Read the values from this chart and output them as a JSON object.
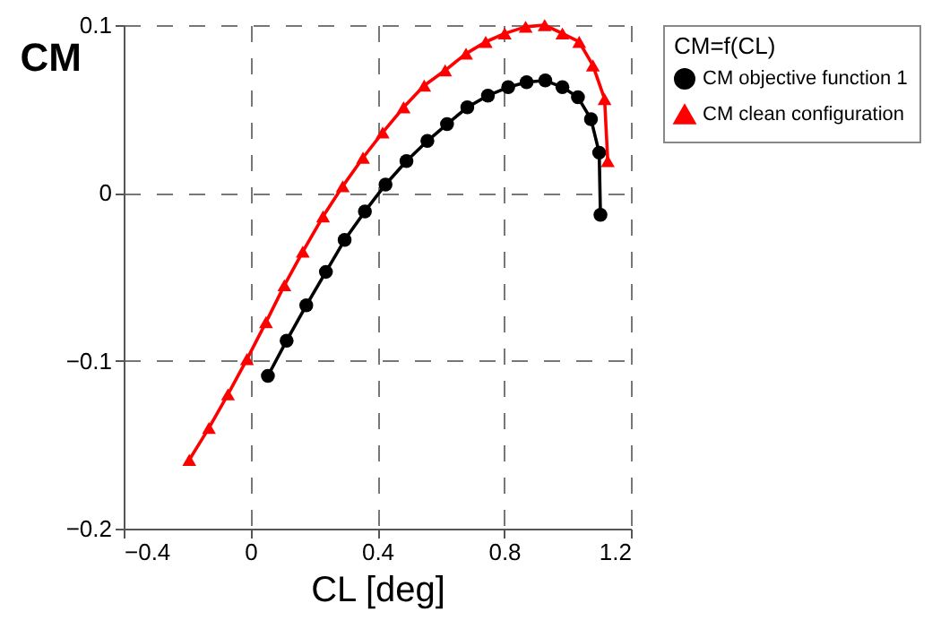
{
  "chart_data": {
    "type": "line",
    "xlabel": "CL [deg]",
    "ylabel": "CM",
    "legend_title": "CM=f(CL)",
    "xlim": [
      -0.4,
      1.2
    ],
    "xticks": [
      -0.4,
      0,
      0.4,
      0.8,
      1.2
    ],
    "ylim": [
      -0.2,
      0.1
    ],
    "yticks": [
      -0.2,
      -0.1,
      0,
      0.1
    ],
    "grid": true,
    "legend": "right",
    "line_style": "solid",
    "series": [
      {
        "name": "CM objective function 1",
        "color": "#000000",
        "marker": "circle",
        "x": [
          0.055,
          0.114,
          0.176,
          0.238,
          0.297,
          0.361,
          0.426,
          0.492,
          0.558,
          0.62,
          0.684,
          0.749,
          0.813,
          0.871,
          0.93,
          0.984,
          1.033,
          1.074,
          1.1,
          1.104
        ],
        "values": [
          -0.109,
          -0.088,
          -0.067,
          -0.047,
          -0.028,
          -0.011,
          0.005,
          0.019,
          0.031,
          0.041,
          0.051,
          0.058,
          0.063,
          0.066,
          0.067,
          0.063,
          0.057,
          0.044,
          0.024,
          -0.013
        ]
      },
      {
        "name": "CM clean configuration",
        "color": "#ff0000",
        "marker": "triangle",
        "x": [
          -0.193,
          -0.131,
          -0.071,
          -0.011,
          0.049,
          0.107,
          0.165,
          0.229,
          0.291,
          0.355,
          0.417,
          0.483,
          0.548,
          0.614,
          0.68,
          0.742,
          0.802,
          0.868,
          0.928,
          0.984,
          1.037,
          1.08,
          1.117,
          1.127
        ],
        "values": [
          -0.159,
          -0.14,
          -0.12,
          -0.099,
          -0.077,
          -0.055,
          -0.035,
          -0.014,
          0.004,
          0.021,
          0.036,
          0.051,
          0.064,
          0.073,
          0.083,
          0.09,
          0.095,
          0.099,
          0.1,
          0.095,
          0.09,
          0.076,
          0.056,
          0.019
        ]
      }
    ]
  }
}
